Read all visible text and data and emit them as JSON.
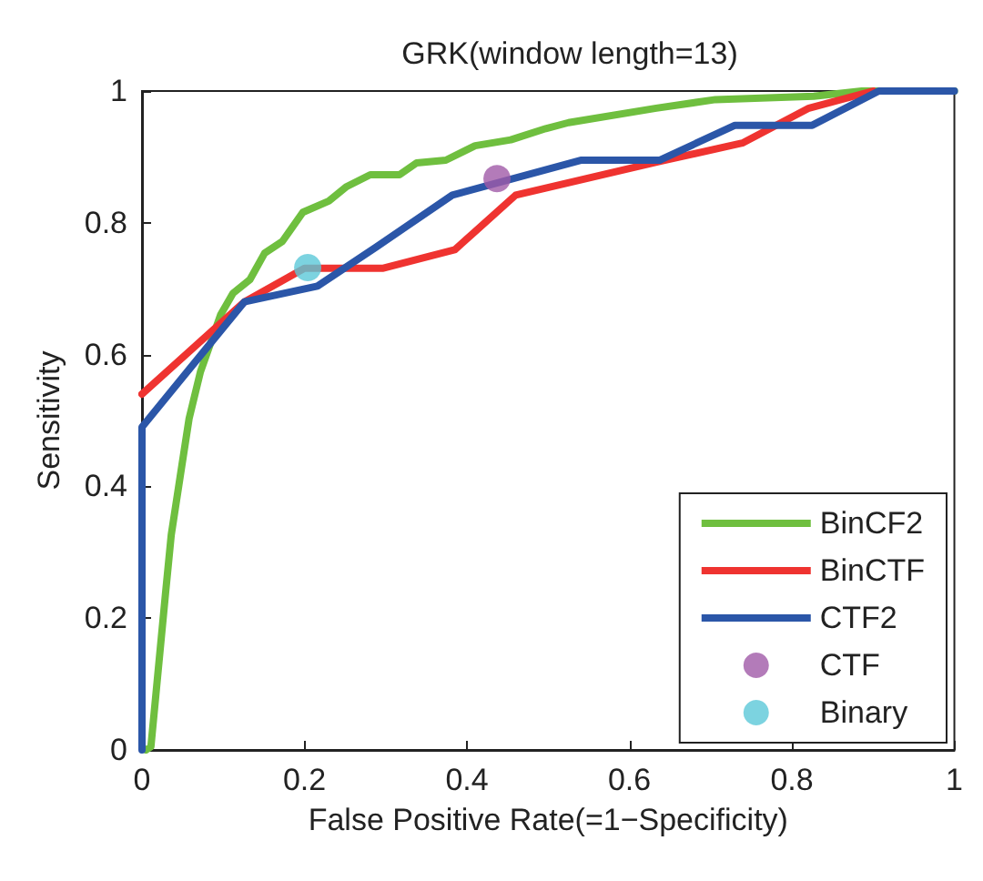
{
  "chart_data": {
    "type": "line",
    "title": "GRK(window length=13)",
    "xlabel": "False Positive Rate(=1−Specificity)",
    "ylabel": "Sensitivity",
    "xlim": [
      0,
      1
    ],
    "ylim": [
      0,
      1
    ],
    "xticks": [
      0,
      0.2,
      0.4,
      0.6,
      0.8,
      1
    ],
    "yticks": [
      0,
      0.2,
      0.4,
      0.6,
      0.8,
      1
    ],
    "grid": false,
    "legend": "bottom right",
    "marker": "none",
    "line_style": "solid",
    "series": [
      {
        "name": "BinCF2",
        "color": "#6fbf3f",
        "x": [
          0.005,
          0.011,
          0.029,
          0.036,
          0.047,
          0.058,
          0.072,
          0.097,
          0.112,
          0.133,
          0.151,
          0.173,
          0.198,
          0.23,
          0.252,
          0.281,
          0.317,
          0.338,
          0.374,
          0.41,
          0.454,
          0.497,
          0.525,
          0.633,
          0.706,
          0.827,
          0.886,
          1
        ],
        "values": [
          0,
          0.005,
          0.238,
          0.326,
          0.415,
          0.503,
          0.574,
          0.661,
          0.693,
          0.714,
          0.754,
          0.772,
          0.816,
          0.833,
          0.855,
          0.873,
          0.873,
          0.891,
          0.895,
          0.917,
          0.926,
          0.943,
          0.952,
          0.974,
          0.987,
          0.992,
          1,
          1
        ]
      },
      {
        "name": "BinCTF",
        "color": "#ef3330",
        "x": [
          0,
          0.126,
          0.2,
          0.296,
          0.385,
          0.46,
          0.637,
          0.739,
          0.821,
          0.9
        ],
        "values": [
          0.54,
          0.68,
          0.731,
          0.731,
          0.759,
          0.842,
          0.893,
          0.921,
          0.974,
          1
        ]
      },
      {
        "name": "CTF2",
        "color": "#2b56a8",
        "x": [
          0,
          0,
          0.126,
          0.216,
          0.288,
          0.382,
          0.54,
          0.637,
          0.73,
          0.825,
          0.907,
          1
        ],
        "values": [
          0,
          0.49,
          0.68,
          0.704,
          0.763,
          0.842,
          0.895,
          0.895,
          0.948,
          0.948,
          1,
          1
        ]
      },
      {
        "name": "CTF",
        "type": "scatter",
        "marker": "circle",
        "color": "#a05aa8",
        "x": [
          0.437
        ],
        "values": [
          0.867
        ]
      },
      {
        "name": "Binary",
        "type": "scatter",
        "marker": "circle",
        "color": "#5bc8d8",
        "x": [
          0.204
        ],
        "values": [
          0.732
        ]
      }
    ]
  }
}
